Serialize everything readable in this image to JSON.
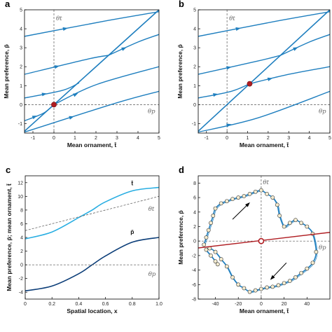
{
  "chart_data": [
    {
      "panel": "a",
      "type": "line",
      "xlabel": "Mean ornament, t̄",
      "ylabel": "Mean preference, p̄",
      "xlim": [
        -1.4,
        5
      ],
      "ylim": [
        -1.5,
        5
      ],
      "xticks": [
        "-1",
        "0",
        "1",
        "2",
        "3",
        "4",
        "5"
      ],
      "yticks": [
        "-1",
        "0",
        "1",
        "2",
        "3",
        "4",
        "5"
      ],
      "annotations": [
        "θt",
        "θp"
      ],
      "line_of_equilibria": {
        "x": [
          -1.4,
          5
        ],
        "y": [
          -1.4,
          5
        ]
      },
      "equilibrium_point": {
        "x": 0,
        "y": 0
      },
      "series": [
        {
          "x": [
            -1.4,
            2.4,
            5
          ],
          "y": [
            3.6,
            4.4,
            4.9
          ]
        },
        {
          "x": [
            -1.4,
            1.6,
            2.6
          ],
          "y": [
            1.6,
            2.4,
            2.6
          ]
        },
        {
          "x": [
            -1.4,
            0.4,
            1.2
          ],
          "y": [
            0.35,
            0.75,
            1.15
          ]
        },
        {
          "x": [
            -1.4,
            -0.5,
            0
          ],
          "y": [
            -0.85,
            -0.45,
            0
          ]
        },
        {
          "x": [
            -1.4,
            3,
            5
          ],
          "y": [
            -1.45,
            0.1,
            0.7
          ]
        },
        {
          "x": [
            0,
            2,
            5
          ],
          "y": [
            0,
            1.05,
            2.0
          ]
        },
        {
          "x": [
            2.6,
            4,
            5
          ],
          "y": [
            2.6,
            3.3,
            3.7
          ]
        }
      ]
    },
    {
      "panel": "b",
      "type": "line",
      "xlabel": "Mean ornament, t̄",
      "ylabel": "Mean preference, p̄",
      "xlim": [
        -1.4,
        5
      ],
      "ylim": [
        -1.5,
        5
      ],
      "xticks": [
        "-1",
        "0",
        "1",
        "2",
        "3",
        "4",
        "5"
      ],
      "yticks": [
        "-1",
        "0",
        "1",
        "2",
        "3",
        "4",
        "5"
      ],
      "annotations": [
        "θt",
        "θp"
      ],
      "line_of_equilibria": {
        "x": [
          -1.4,
          5
        ],
        "y": [
          -1.4,
          5
        ]
      },
      "equilibrium_point": {
        "x": 1.1,
        "y": 1.1
      },
      "series": [
        {
          "x": [
            -1.4,
            2.4,
            5
          ],
          "y": [
            3.6,
            4.4,
            4.9
          ]
        },
        {
          "x": [
            -1.4,
            1.5,
            2.6
          ],
          "y": [
            1.6,
            2.3,
            2.6
          ]
        },
        {
          "x": [
            -1.4,
            0.2,
            1.1
          ],
          "y": [
            0.35,
            0.7,
            1.1
          ]
        },
        {
          "x": [
            -1.4,
            1.5,
            5
          ],
          "y": [
            -1.45,
            -0.7,
            0.7
          ]
        },
        {
          "x": [
            1.1,
            3,
            5
          ],
          "y": [
            1.1,
            1.6,
            2.0
          ]
        },
        {
          "x": [
            2.6,
            4,
            5
          ],
          "y": [
            2.6,
            3.3,
            3.7
          ]
        }
      ]
    },
    {
      "panel": "c",
      "type": "line",
      "xlabel": "Spatial location, x",
      "ylabel": "Mean preference, p̄; mean ornament, t̄",
      "xlim": [
        0,
        1.0
      ],
      "ylim": [
        -5,
        13
      ],
      "xticks": [
        "0",
        "0.2",
        "0.4",
        "0.6",
        "0.8",
        "1.0"
      ],
      "yticks": [
        "-4",
        "-2",
        "0",
        "2",
        "4",
        "6",
        "8",
        "10",
        "12"
      ],
      "annotations": [
        "θt",
        "θp"
      ],
      "series": [
        {
          "name": "t̄",
          "x": [
            0,
            0.2,
            0.4,
            0.5,
            0.6,
            0.8,
            1.0
          ],
          "y": [
            3.8,
            4.8,
            6.9,
            8.0,
            9.2,
            10.8,
            11.3
          ]
        },
        {
          "name": "p̄",
          "x": [
            0,
            0.2,
            0.4,
            0.5,
            0.6,
            0.8,
            1.0
          ],
          "y": [
            -3.8,
            -3.1,
            -1.3,
            0.0,
            1.3,
            3.3,
            4.0
          ]
        },
        {
          "name": "θt",
          "x": [
            0,
            1.0
          ],
          "y": [
            5.0,
            10.0
          ]
        },
        {
          "name": "θp",
          "x": [
            0,
            1.0
          ],
          "y": [
            0,
            0
          ]
        }
      ]
    },
    {
      "panel": "d",
      "type": "scatter",
      "xlabel": "Mean ornament, t̄",
      "ylabel": "Mean preference, p̄",
      "xlim": [
        -55,
        60
      ],
      "ylim": [
        -8,
        9
      ],
      "xticks": [
        "-40",
        "-20",
        "0",
        "20",
        "40"
      ],
      "yticks": [
        "-8",
        "-6",
        "-4",
        "-2",
        "0",
        "2",
        "4",
        "6",
        "8"
      ],
      "annotations": [
        "θt",
        "θp"
      ],
      "line_of_equilibria": {
        "x": [
          -55,
          60
        ],
        "y": [
          -0.95,
          1.2
        ]
      },
      "open_equilibrium": {
        "x": 0,
        "y": 0
      },
      "series": [
        {
          "name": "trajectory",
          "x": [
            -50,
            -48,
            -46,
            -44,
            -42,
            -40,
            -35,
            -30,
            -25,
            -20,
            -15,
            -10,
            -5,
            0,
            5,
            10,
            14,
            16,
            20,
            25,
            30,
            35,
            40,
            45,
            48,
            45,
            40,
            35,
            30,
            25,
            20,
            15,
            10,
            5,
            0,
            -5,
            -10,
            -15,
            -20,
            -25,
            -30,
            -35,
            -40,
            -45,
            -48,
            -44,
            -40,
            -38
          ],
          "y": [
            -0.5,
            0.5,
            1.5,
            2.5,
            3.5,
            4.5,
            5.2,
            5.5,
            5.8,
            6.0,
            6.2,
            6.5,
            6.8,
            7.0,
            6.5,
            6.0,
            5.0,
            3.5,
            2.0,
            2.5,
            2.9,
            2.5,
            2.0,
            1.0,
            -1.5,
            -3.0,
            -3.8,
            -4.4,
            -5.0,
            -5.5,
            -5.8,
            -6.1,
            -6.3,
            -6.4,
            -6.6,
            -6.8,
            -7.0,
            -6.5,
            -6.0,
            -5.0,
            -3.5,
            -2.5,
            -1.5,
            -1.0,
            -1.2,
            -2.0,
            -2.8,
            -3.2
          ]
        }
      ]
    }
  ]
}
